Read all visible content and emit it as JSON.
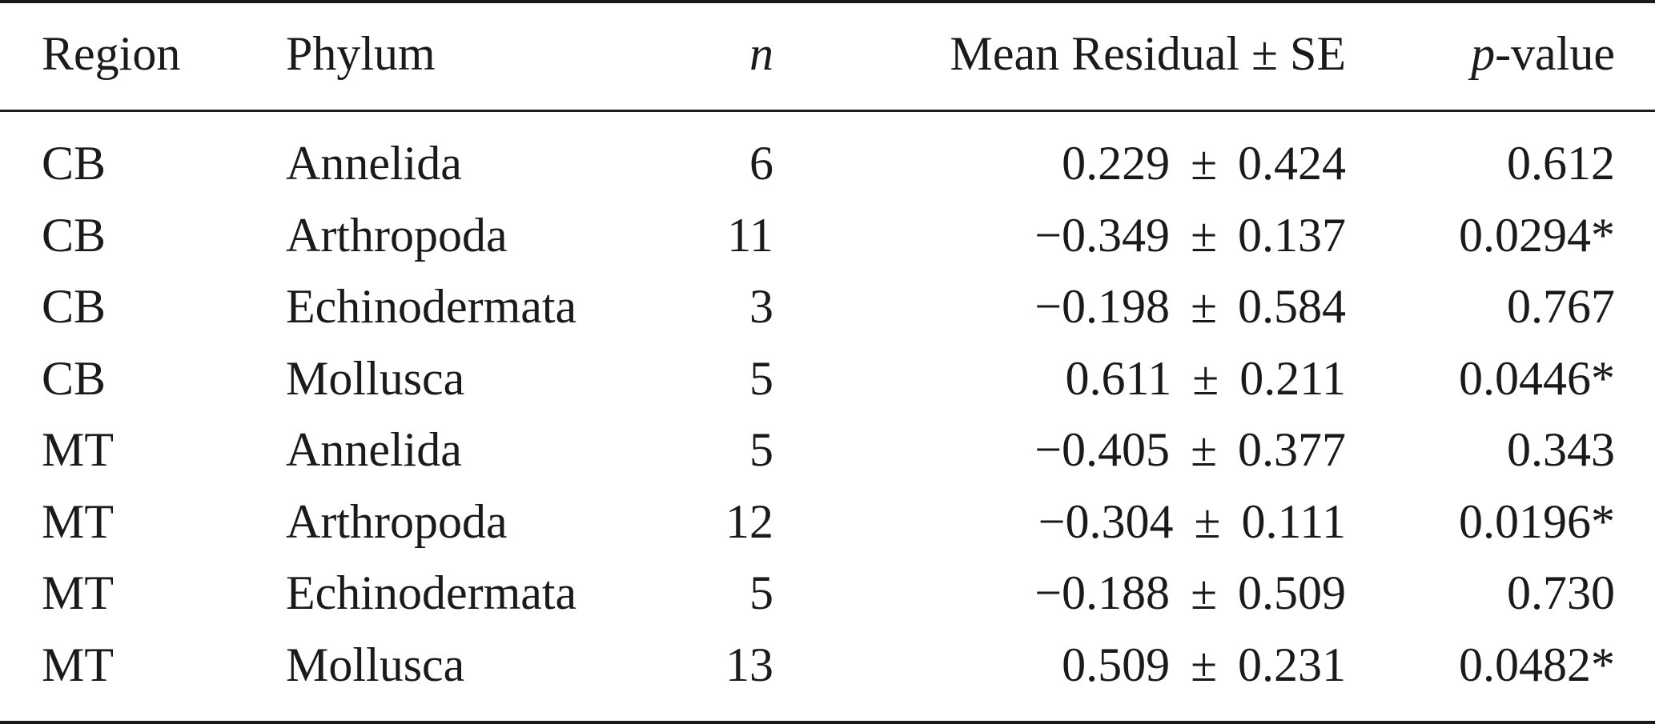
{
  "table": {
    "headers": {
      "region": "Region",
      "phylum": "Phylum",
      "n": "n",
      "mean": "Mean Residual ± SE",
      "p_italic": "p",
      "p_rest": "-value"
    },
    "rows": [
      {
        "region": "CB",
        "phylum": "Annelida",
        "n": "6",
        "mean": "0.229",
        "se": "0.424",
        "p": "0.612"
      },
      {
        "region": "CB",
        "phylum": "Arthropoda",
        "n": "11",
        "mean": "−0.349",
        "se": "0.137",
        "p": "0.0294*"
      },
      {
        "region": "CB",
        "phylum": "Echinodermata",
        "n": "3",
        "mean": "−0.198",
        "se": "0.584",
        "p": "0.767"
      },
      {
        "region": "CB",
        "phylum": "Mollusca",
        "n": "5",
        "mean": "0.611",
        "se": "0.211",
        "p": "0.0446*"
      },
      {
        "region": "MT",
        "phylum": "Annelida",
        "n": "5",
        "mean": "−0.405",
        "se": "0.377",
        "p": "0.343"
      },
      {
        "region": "MT",
        "phylum": "Arthropoda",
        "n": "12",
        "mean": "−0.304",
        "se": "0.111",
        "p": "0.0196*"
      },
      {
        "region": "MT",
        "phylum": "Echinodermata",
        "n": "5",
        "mean": "−0.188",
        "se": "0.509",
        "p": "0.730"
      },
      {
        "region": "MT",
        "phylum": "Mollusca",
        "n": "13",
        "mean": "0.509",
        "se": "0.231",
        "p": "0.0482*"
      }
    ],
    "pm_symbol": "±"
  }
}
